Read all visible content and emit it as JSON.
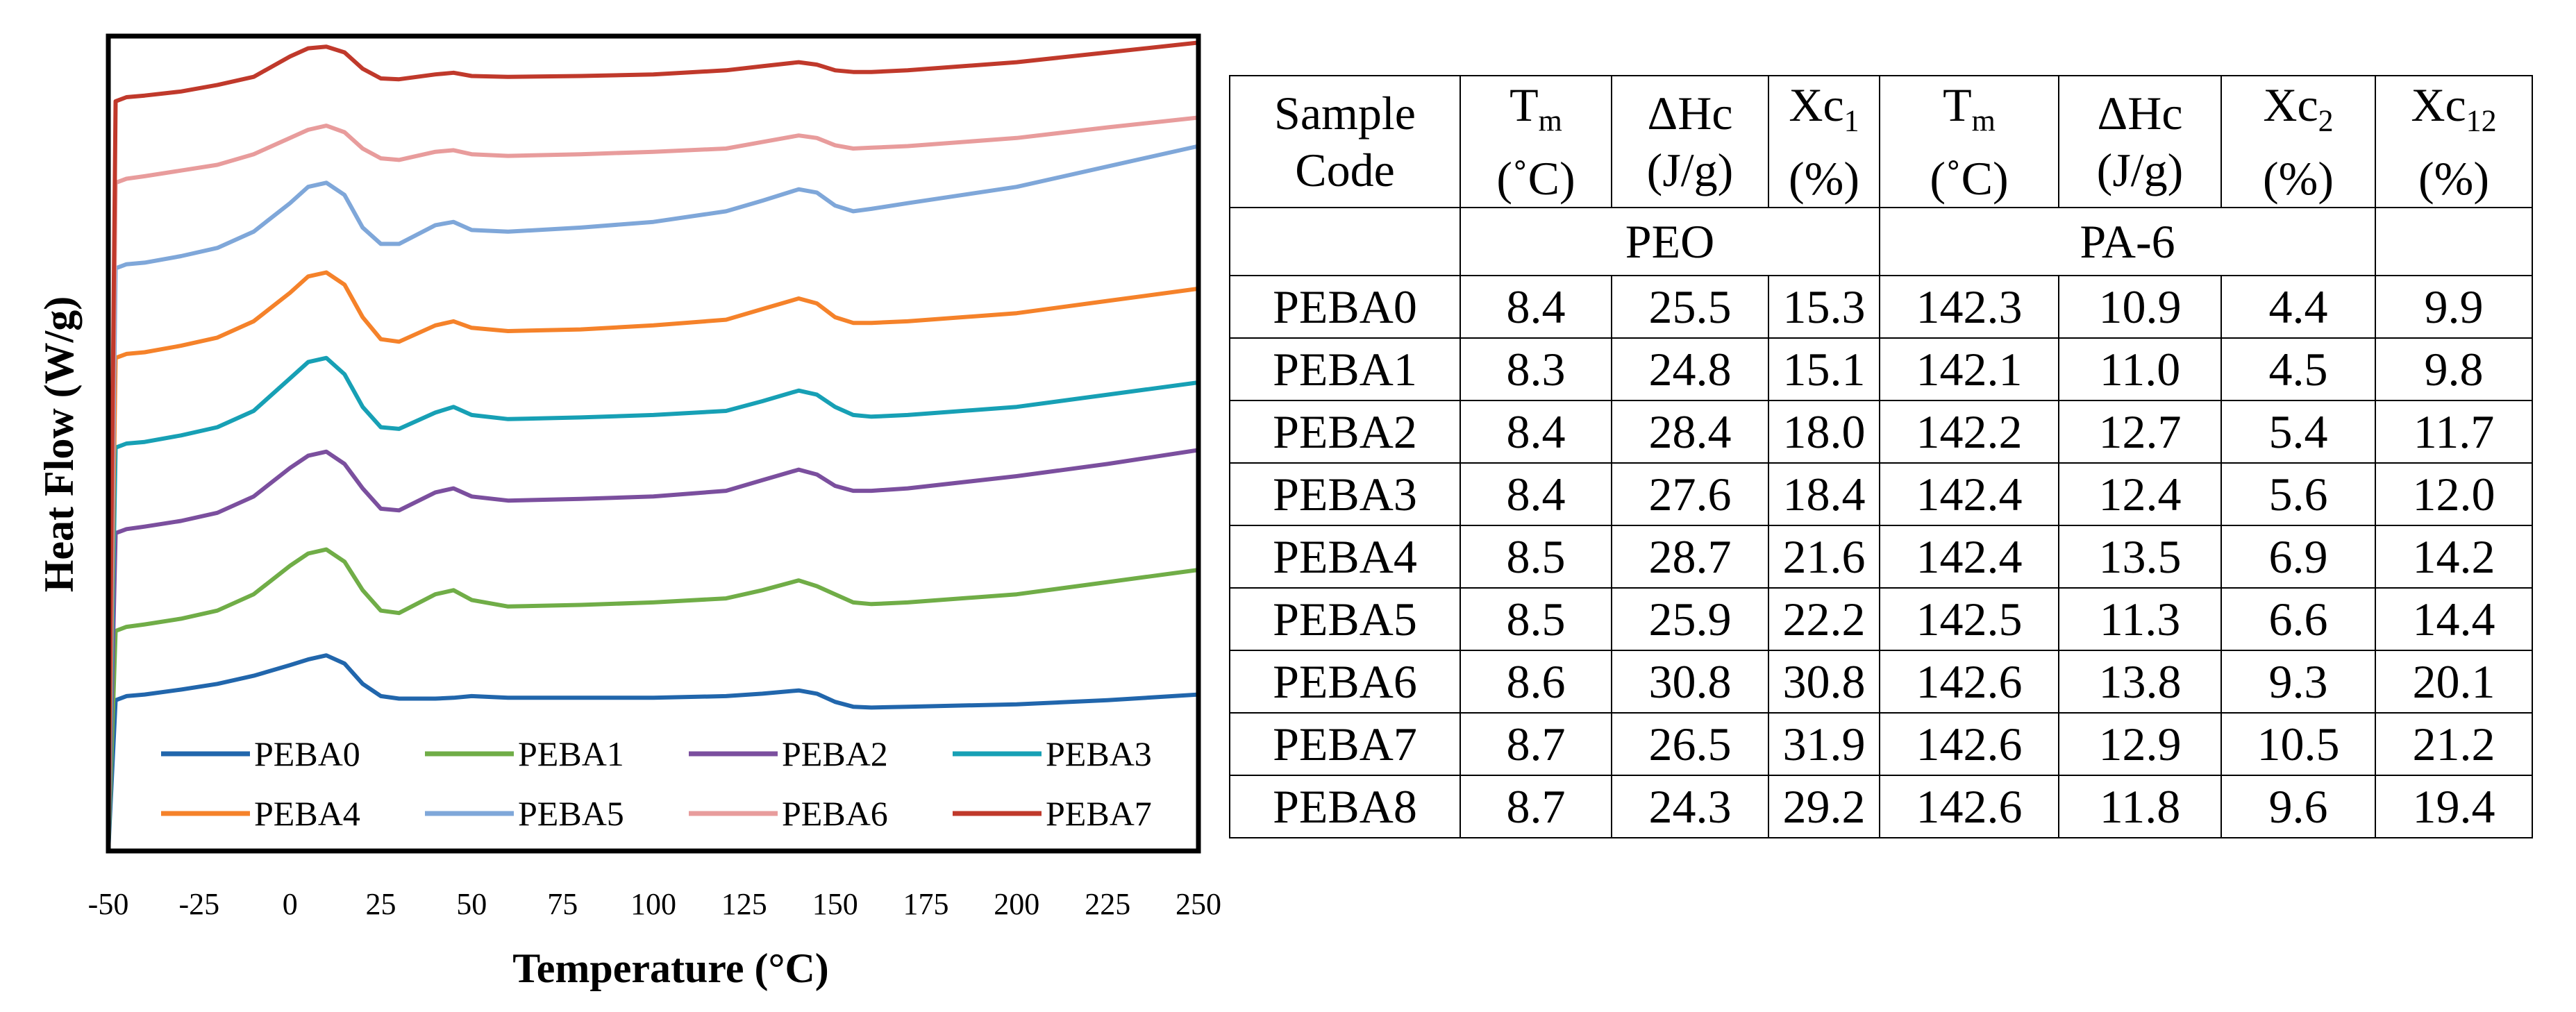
{
  "chart_data": {
    "type": "line",
    "title": "",
    "xlabel": "Temperature (°C)",
    "ylabel": "Heat Flow (W/g)",
    "xlim": [
      -50,
      250
    ],
    "ylim": [
      0,
      10
    ],
    "xticks": [
      "-50",
      "-25",
      "0",
      "25",
      "50",
      "75",
      "100",
      "125",
      "150",
      "175",
      "200",
      "225",
      "250"
    ],
    "grid": false,
    "legend": "bottom, inside plot, 4 columns",
    "x": [
      -50,
      -48,
      -45,
      -40,
      -30,
      -20,
      -10,
      0,
      5,
      10,
      15,
      20,
      25,
      30,
      40,
      45,
      50,
      60,
      80,
      100,
      120,
      130,
      140,
      145,
      150,
      155,
      160,
      170,
      200,
      225,
      250
    ],
    "series": [
      {
        "name": "PEBA0",
        "color": "#2166AC",
        "values": [
          0.0,
          1.85,
          1.9,
          1.92,
          1.98,
          2.05,
          2.15,
          2.28,
          2.35,
          2.4,
          2.3,
          2.05,
          1.9,
          1.87,
          1.87,
          1.88,
          1.9,
          1.88,
          1.88,
          1.88,
          1.9,
          1.93,
          1.97,
          1.93,
          1.83,
          1.77,
          1.76,
          1.77,
          1.8,
          1.85,
          1.92
        ]
      },
      {
        "name": "PEBA1",
        "color": "#70AD47",
        "values": [
          0.0,
          2.7,
          2.75,
          2.78,
          2.85,
          2.95,
          3.15,
          3.5,
          3.65,
          3.7,
          3.55,
          3.2,
          2.95,
          2.92,
          3.15,
          3.2,
          3.08,
          3.0,
          3.02,
          3.05,
          3.1,
          3.2,
          3.32,
          3.25,
          3.15,
          3.05,
          3.03,
          3.05,
          3.15,
          3.3,
          3.45
        ]
      },
      {
        "name": "PEBA2",
        "color": "#7B4F9E",
        "values": [
          0.0,
          3.9,
          3.95,
          3.98,
          4.05,
          4.15,
          4.35,
          4.7,
          4.85,
          4.9,
          4.75,
          4.45,
          4.2,
          4.18,
          4.4,
          4.45,
          4.35,
          4.3,
          4.32,
          4.35,
          4.42,
          4.55,
          4.68,
          4.62,
          4.48,
          4.42,
          4.42,
          4.45,
          4.6,
          4.75,
          4.92
        ]
      },
      {
        "name": "PEBA3",
        "color": "#17A0B5",
        "values": [
          0.0,
          4.95,
          5.0,
          5.02,
          5.1,
          5.2,
          5.4,
          5.8,
          6.0,
          6.05,
          5.85,
          5.45,
          5.2,
          5.18,
          5.38,
          5.45,
          5.35,
          5.3,
          5.32,
          5.35,
          5.4,
          5.52,
          5.65,
          5.6,
          5.45,
          5.35,
          5.33,
          5.35,
          5.45,
          5.6,
          5.75
        ]
      },
      {
        "name": "PEBA4",
        "color": "#F5822A",
        "values": [
          0.0,
          6.05,
          6.1,
          6.12,
          6.2,
          6.3,
          6.5,
          6.85,
          7.05,
          7.1,
          6.95,
          6.55,
          6.28,
          6.25,
          6.45,
          6.5,
          6.42,
          6.38,
          6.4,
          6.45,
          6.52,
          6.65,
          6.78,
          6.72,
          6.55,
          6.48,
          6.48,
          6.5,
          6.6,
          6.75,
          6.9
        ]
      },
      {
        "name": "PEBA5",
        "color": "#7FA7D9",
        "values": [
          0.0,
          7.15,
          7.2,
          7.22,
          7.3,
          7.4,
          7.6,
          7.95,
          8.15,
          8.2,
          8.05,
          7.65,
          7.45,
          7.45,
          7.68,
          7.72,
          7.62,
          7.6,
          7.65,
          7.72,
          7.85,
          7.98,
          8.12,
          8.08,
          7.92,
          7.85,
          7.88,
          7.95,
          8.15,
          8.4,
          8.65
        ]
      },
      {
        "name": "PEBA6",
        "color": "#E89C9C",
        "values": [
          0.0,
          8.2,
          8.25,
          8.28,
          8.35,
          8.42,
          8.55,
          8.75,
          8.85,
          8.9,
          8.82,
          8.62,
          8.5,
          8.48,
          8.58,
          8.6,
          8.55,
          8.53,
          8.55,
          8.58,
          8.62,
          8.7,
          8.78,
          8.75,
          8.66,
          8.62,
          8.63,
          8.65,
          8.75,
          8.88,
          9.0
        ]
      },
      {
        "name": "PEBA7",
        "color": "#C0392B",
        "values": [
          0.0,
          9.2,
          9.25,
          9.27,
          9.32,
          9.4,
          9.5,
          9.75,
          9.85,
          9.87,
          9.8,
          9.6,
          9.48,
          9.47,
          9.53,
          9.55,
          9.51,
          9.5,
          9.51,
          9.53,
          9.58,
          9.63,
          9.68,
          9.65,
          9.58,
          9.56,
          9.56,
          9.58,
          9.68,
          9.8,
          9.92
        ]
      }
    ]
  },
  "table": {
    "header": [
      {
        "line1": "Sample",
        "line2": "Code"
      },
      {
        "base": "T",
        "sub": "m",
        "line2": "(˚C)"
      },
      {
        "base": "ΔHc",
        "sub": "",
        "line2": "(J/g)"
      },
      {
        "base": "Xc",
        "sub": "1",
        "line2": "(%)"
      },
      {
        "base": "T",
        "sub": "m",
        "line2": "(˚C)"
      },
      {
        "base": "ΔHc",
        "sub": "",
        "line2": "(J/g)"
      },
      {
        "base": "Xc",
        "sub": "2",
        "line2": "(%)"
      },
      {
        "base": "Xc",
        "sub": "12",
        "line2": "(%)"
      }
    ],
    "group_labels": [
      "PEO",
      "PA-6"
    ],
    "rows": [
      [
        "PEBA0",
        "8.4",
        "25.5",
        "15.3",
        "142.3",
        "10.9",
        "4.4",
        "9.9"
      ],
      [
        "PEBA1",
        "8.3",
        "24.8",
        "15.1",
        "142.1",
        "11.0",
        "4.5",
        "9.8"
      ],
      [
        "PEBA2",
        "8.4",
        "28.4",
        "18.0",
        "142.2",
        "12.7",
        "5.4",
        "11.7"
      ],
      [
        "PEBA3",
        "8.4",
        "27.6",
        "18.4",
        "142.4",
        "12.4",
        "5.6",
        "12.0"
      ],
      [
        "PEBA4",
        "8.5",
        "28.7",
        "21.6",
        "142.4",
        "13.5",
        "6.9",
        "14.2"
      ],
      [
        "PEBA5",
        "8.5",
        "25.9",
        "22.2",
        "142.5",
        "11.3",
        "6.6",
        "14.4"
      ],
      [
        "PEBA6",
        "8.6",
        "30.8",
        "30.8",
        "142.6",
        "13.8",
        "9.3",
        "20.1"
      ],
      [
        "PEBA7",
        "8.7",
        "26.5",
        "31.9",
        "142.6",
        "12.9",
        "10.5",
        "21.2"
      ],
      [
        "PEBA8",
        "8.7",
        "24.3",
        "29.2",
        "142.6",
        "11.8",
        "9.6",
        "19.4"
      ]
    ]
  }
}
